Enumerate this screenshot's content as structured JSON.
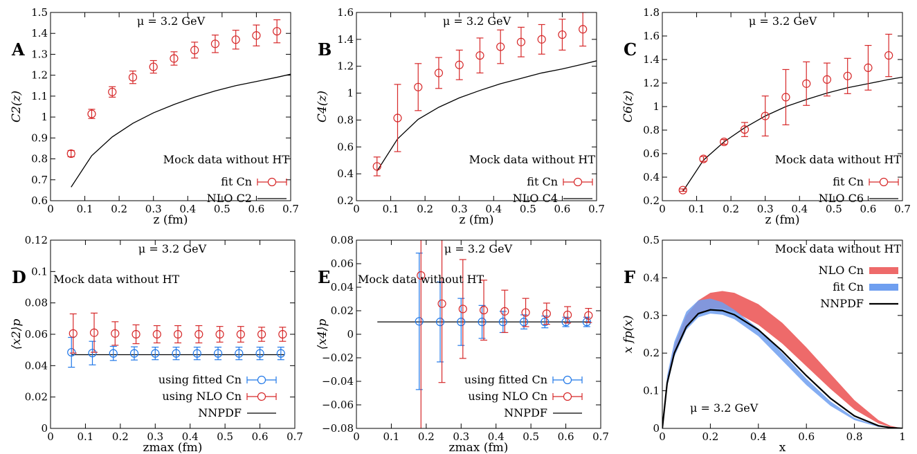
{
  "figure": {
    "colors": {
      "red": "#d62728",
      "blue": "#1f77e8",
      "black": "#000000",
      "red_band": "#ee6a6a",
      "blue_band": "#6f9ff0",
      "overlap_band": "#6a5aa8"
    }
  },
  "chart_data": [
    {
      "id": "A",
      "type": "scatter",
      "panel_label": "A",
      "mu_text": "μ = 3.2 GeV",
      "note": "Mock data without HT",
      "xlabel": "z (fm)",
      "ylabel": "C2(z)",
      "xlim": [
        0,
        0.7
      ],
      "ylim": [
        0.6,
        1.5
      ],
      "xticks": [
        0,
        0.1,
        0.2,
        0.3,
        0.4,
        0.5,
        0.6,
        0.7
      ],
      "xtick_labels": [
        "0",
        "0.1",
        "0.2",
        "0.3",
        "0.4",
        "0.5",
        "0.6",
        "0.7"
      ],
      "yticks": [
        0.6,
        0.7,
        0.8,
        0.9,
        1.0,
        1.1,
        1.2,
        1.3,
        1.4,
        1.5
      ],
      "ytick_labels": [
        "0.6",
        "0.7",
        "0.8",
        "0.9",
        "1",
        "1.1",
        "1.2",
        "1.3",
        "1.4",
        "1.5"
      ],
      "legend": [
        {
          "label": "fit Cn",
          "style": "red-marker"
        },
        {
          "label": "NLO C2",
          "style": "black-line"
        }
      ],
      "series": [
        {
          "name": "fit Cn",
          "kind": "points",
          "color": "#d62728",
          "x": [
            0.06,
            0.12,
            0.18,
            0.24,
            0.3,
            0.36,
            0.42,
            0.48,
            0.54,
            0.6,
            0.66
          ],
          "y": [
            0.825,
            1.015,
            1.12,
            1.19,
            1.24,
            1.28,
            1.32,
            1.35,
            1.37,
            1.39,
            1.41
          ],
          "err": [
            0.015,
            0.022,
            0.025,
            0.03,
            0.03,
            0.032,
            0.038,
            0.042,
            0.045,
            0.05,
            0.055
          ]
        },
        {
          "name": "NLO C2",
          "kind": "line",
          "color": "#000000",
          "x": [
            0.06,
            0.12,
            0.18,
            0.24,
            0.3,
            0.36,
            0.42,
            0.48,
            0.54,
            0.6,
            0.66,
            0.7
          ],
          "y": [
            0.665,
            0.815,
            0.905,
            0.97,
            1.02,
            1.06,
            1.095,
            1.125,
            1.15,
            1.17,
            1.19,
            1.205
          ]
        }
      ]
    },
    {
      "id": "B",
      "type": "scatter",
      "panel_label": "B",
      "mu_text": "μ = 3.2 GeV",
      "note": "Mock data without HT",
      "xlabel": "z (fm)",
      "ylabel": "C4(z)",
      "xlim": [
        0,
        0.7
      ],
      "ylim": [
        0.2,
        1.6
      ],
      "xticks": [
        0,
        0.1,
        0.2,
        0.3,
        0.4,
        0.5,
        0.6,
        0.7
      ],
      "xtick_labels": [
        "0",
        "0.1",
        "0.2",
        "0.3",
        "0.4",
        "0.5",
        "0.6",
        "0.7"
      ],
      "yticks": [
        0.2,
        0.4,
        0.6,
        0.8,
        1.0,
        1.2,
        1.4,
        1.6
      ],
      "ytick_labels": [
        "0.2",
        "0.4",
        "0.6",
        "0.8",
        "1",
        "1.2",
        "1.4",
        "1.6"
      ],
      "legend": [
        {
          "label": "fit Cn",
          "style": "red-marker"
        },
        {
          "label": "NLO C4",
          "style": "black-line"
        }
      ],
      "series": [
        {
          "name": "fit Cn",
          "kind": "points",
          "color": "#d62728",
          "x": [
            0.06,
            0.12,
            0.18,
            0.24,
            0.3,
            0.36,
            0.42,
            0.48,
            0.54,
            0.6,
            0.66
          ],
          "y": [
            0.455,
            0.815,
            1.045,
            1.15,
            1.21,
            1.28,
            1.345,
            1.38,
            1.4,
            1.435,
            1.475
          ],
          "err": [
            0.07,
            0.25,
            0.175,
            0.115,
            0.11,
            0.13,
            0.125,
            0.11,
            0.11,
            0.115,
            0.125
          ]
        },
        {
          "name": "NLO C4",
          "kind": "line",
          "color": "#000000",
          "x": [
            0.06,
            0.12,
            0.18,
            0.24,
            0.3,
            0.36,
            0.42,
            0.48,
            0.54,
            0.6,
            0.66,
            0.7
          ],
          "y": [
            0.42,
            0.66,
            0.805,
            0.895,
            0.965,
            1.02,
            1.07,
            1.11,
            1.15,
            1.18,
            1.215,
            1.24
          ]
        }
      ]
    },
    {
      "id": "C",
      "type": "scatter",
      "panel_label": "C",
      "mu_text": "μ = 3.2 GeV",
      "note": "Mock data without HT",
      "xlabel": "z (fm)",
      "ylabel": "C6(z)",
      "xlim": [
        0,
        0.7
      ],
      "ylim": [
        0.2,
        1.8
      ],
      "xticks": [
        0,
        0.1,
        0.2,
        0.3,
        0.4,
        0.5,
        0.6,
        0.7
      ],
      "xtick_labels": [
        "0",
        "0.1",
        "0.2",
        "0.3",
        "0.4",
        "0.5",
        "0.6",
        "0.7"
      ],
      "yticks": [
        0.2,
        0.4,
        0.6,
        0.8,
        1.0,
        1.2,
        1.4,
        1.6,
        1.8
      ],
      "ytick_labels": [
        "0.2",
        "0.4",
        "0.6",
        "0.8",
        "1",
        "1.2",
        "1.4",
        "1.6",
        "1.8"
      ],
      "legend": [
        {
          "label": "fit Cn",
          "style": "red-marker"
        },
        {
          "label": "NLO C6",
          "style": "black-line"
        }
      ],
      "series": [
        {
          "name": "fit Cn",
          "kind": "points",
          "color": "#d62728",
          "x": [
            0.06,
            0.12,
            0.18,
            0.24,
            0.3,
            0.36,
            0.42,
            0.48,
            0.54,
            0.6,
            0.66
          ],
          "y": [
            0.29,
            0.555,
            0.7,
            0.805,
            0.92,
            1.08,
            1.195,
            1.23,
            1.26,
            1.33,
            1.435
          ],
          "err": [
            0.01,
            0.02,
            0.02,
            0.06,
            0.17,
            0.235,
            0.185,
            0.14,
            0.15,
            0.19,
            0.18
          ]
        },
        {
          "name": "NLO C6",
          "kind": "line",
          "color": "#000000",
          "x": [
            0.06,
            0.12,
            0.18,
            0.24,
            0.3,
            0.36,
            0.42,
            0.48,
            0.54,
            0.6,
            0.66,
            0.7
          ],
          "y": [
            0.28,
            0.545,
            0.7,
            0.82,
            0.92,
            1.0,
            1.06,
            1.115,
            1.16,
            1.195,
            1.23,
            1.25
          ]
        }
      ]
    },
    {
      "id": "D",
      "type": "scatter",
      "panel_label": "D",
      "mu_text": "μ = 3.2 GeV",
      "note": "Mock data without HT",
      "xlabel": "zmax (fm)",
      "ylabel": "⟨x2⟩p",
      "xlim": [
        0,
        0.7
      ],
      "ylim": [
        0,
        0.12
      ],
      "xticks": [
        0,
        0.1,
        0.2,
        0.3,
        0.4,
        0.5,
        0.6,
        0.7
      ],
      "xtick_labels": [
        "0",
        "0.1",
        "0.2",
        "0.3",
        "0.4",
        "0.5",
        "0.6",
        "0.7"
      ],
      "yticks": [
        0,
        0.02,
        0.04,
        0.06,
        0.08,
        0.1,
        0.12
      ],
      "ytick_labels": [
        "0",
        "0.02",
        "0.04",
        "0.06",
        "0.08",
        "0.1",
        "0.12"
      ],
      "legend": [
        {
          "label": "using fitted Cn",
          "style": "blue-marker"
        },
        {
          "label": "using NLO Cn",
          "style": "red-marker"
        },
        {
          "label": "NNPDF",
          "style": "black-line"
        }
      ],
      "series": [
        {
          "name": "using fitted Cn",
          "kind": "points",
          "color": "#1f77e8",
          "x": [
            0.06,
            0.12,
            0.18,
            0.24,
            0.3,
            0.36,
            0.42,
            0.48,
            0.54,
            0.6,
            0.66
          ],
          "y": [
            0.0485,
            0.048,
            0.0478,
            0.0478,
            0.0478,
            0.0478,
            0.0478,
            0.0478,
            0.0478,
            0.0478,
            0.0478
          ],
          "err": [
            0.0095,
            0.0075,
            0.0045,
            0.0042,
            0.004,
            0.004,
            0.004,
            0.004,
            0.004,
            0.004,
            0.004
          ]
        },
        {
          "name": "using NLO Cn",
          "kind": "points",
          "color": "#d62728",
          "x": [
            0.065,
            0.125,
            0.185,
            0.245,
            0.305,
            0.365,
            0.425,
            0.485,
            0.545,
            0.605,
            0.665
          ],
          "y": [
            0.0605,
            0.061,
            0.0605,
            0.06,
            0.06,
            0.06,
            0.06,
            0.06,
            0.06,
            0.06,
            0.06
          ],
          "err": [
            0.0125,
            0.0125,
            0.0075,
            0.006,
            0.0055,
            0.0055,
            0.0055,
            0.005,
            0.005,
            0.0045,
            0.0045
          ]
        },
        {
          "name": "NNPDF",
          "kind": "line",
          "color": "#000000",
          "x": [
            0.06,
            0.67
          ],
          "y": [
            0.047,
            0.047
          ]
        }
      ]
    },
    {
      "id": "E",
      "type": "scatter",
      "panel_label": "E",
      "mu_text": "μ = 3.2 GeV",
      "note": "Mock data without HT",
      "xlabel": "zmax (fm)",
      "ylabel": "⟨x4⟩p",
      "xlim": [
        0,
        0.7
      ],
      "ylim": [
        -0.08,
        0.08
      ],
      "xticks": [
        0,
        0.1,
        0.2,
        0.3,
        0.4,
        0.5,
        0.6,
        0.7
      ],
      "xtick_labels": [
        "0",
        "0.1",
        "0.2",
        "0.3",
        "0.4",
        "0.5",
        "0.6",
        "0.7"
      ],
      "yticks": [
        -0.08,
        -0.06,
        -0.04,
        -0.02,
        0,
        0.02,
        0.04,
        0.06,
        0.08
      ],
      "ytick_labels": [
        "−0.08",
        "−0.06",
        "−0.04",
        "−0.02",
        "0",
        "0.02",
        "0.04",
        "0.06",
        "0.08"
      ],
      "legend": [
        {
          "label": "using fitted Cn",
          "style": "blue-marker"
        },
        {
          "label": "using NLO Cn",
          "style": "red-marker"
        },
        {
          "label": "NNPDF",
          "style": "black-line"
        }
      ],
      "series": [
        {
          "name": "using fitted Cn",
          "kind": "points",
          "color": "#1f77e8",
          "x": [
            0.18,
            0.24,
            0.3,
            0.36,
            0.42,
            0.48,
            0.54,
            0.6,
            0.66
          ],
          "y": [
            0.011,
            0.0105,
            0.0105,
            0.0105,
            0.0105,
            0.0105,
            0.0105,
            0.0105,
            0.0105
          ],
          "err": [
            0.058,
            0.034,
            0.02,
            0.014,
            0.009,
            0.006,
            0.005,
            0.004,
            0.004
          ]
        },
        {
          "name": "using NLO Cn",
          "kind": "points",
          "color": "#d62728",
          "x": [
            0.185,
            0.245,
            0.305,
            0.365,
            0.425,
            0.485,
            0.545,
            0.605,
            0.665
          ],
          "y": [
            0.05,
            0.026,
            0.0215,
            0.0205,
            0.0195,
            0.0185,
            0.0175,
            0.0165,
            0.016
          ],
          "err": [
            0.15,
            0.067,
            0.042,
            0.0255,
            0.018,
            0.012,
            0.009,
            0.007,
            0.006
          ]
        },
        {
          "name": "NNPDF",
          "kind": "line",
          "color": "#000000",
          "x": [
            0.06,
            0.67
          ],
          "y": [
            0.0105,
            0.0105
          ]
        }
      ]
    },
    {
      "id": "F",
      "type": "area",
      "panel_label": "F",
      "mu_text": "μ = 3.2 GeV",
      "note": "Mock data without HT",
      "xlabel": "x",
      "ylabel": "x fp(x)",
      "xlim": [
        0,
        1
      ],
      "ylim": [
        0,
        0.5
      ],
      "xticks": [
        0,
        0.2,
        0.4,
        0.6,
        0.8,
        1
      ],
      "xtick_labels": [
        "0",
        "0.2",
        "0.4",
        "0.6",
        "0.8",
        "1"
      ],
      "yticks": [
        0,
        0.1,
        0.2,
        0.3,
        0.4,
        0.5
      ],
      "ytick_labels": [
        "0",
        "0.1",
        "0.2",
        "0.3",
        "0.4",
        "0.5"
      ],
      "legend": [
        {
          "label": "NLO Cn",
          "style": "red-band"
        },
        {
          "label": "fit Cn",
          "style": "blue-band"
        },
        {
          "label": "NNPDF",
          "style": "black-line"
        }
      ],
      "series": [
        {
          "name": "NLO Cn",
          "kind": "band",
          "color": "#ee6a6a",
          "x": [
            0,
            0.02,
            0.05,
            0.1,
            0.15,
            0.2,
            0.25,
            0.3,
            0.4,
            0.5,
            0.6,
            0.7,
            0.8,
            0.9,
            0.95,
            1.0
          ],
          "lower": [
            0,
            0.12,
            0.2,
            0.27,
            0.305,
            0.318,
            0.318,
            0.31,
            0.275,
            0.225,
            0.165,
            0.105,
            0.05,
            0.013,
            0.004,
            0
          ],
          "upper": [
            0,
            0.13,
            0.22,
            0.3,
            0.34,
            0.36,
            0.365,
            0.36,
            0.33,
            0.28,
            0.215,
            0.145,
            0.075,
            0.022,
            0.007,
            0
          ]
        },
        {
          "name": "fit Cn",
          "kind": "band",
          "color": "#6f9ff0",
          "x": [
            0,
            0.02,
            0.05,
            0.1,
            0.15,
            0.2,
            0.25,
            0.3,
            0.4,
            0.5,
            0.6,
            0.7,
            0.8,
            0.9,
            0.95,
            1.0
          ],
          "lower": [
            0,
            0.11,
            0.19,
            0.262,
            0.295,
            0.305,
            0.302,
            0.29,
            0.245,
            0.18,
            0.115,
            0.06,
            0.022,
            0.004,
            0.001,
            0
          ],
          "upper": [
            0,
            0.14,
            0.23,
            0.31,
            0.34,
            0.345,
            0.335,
            0.315,
            0.265,
            0.2,
            0.132,
            0.072,
            0.028,
            0.006,
            0.002,
            0
          ]
        },
        {
          "name": "NNPDF",
          "kind": "line",
          "color": "#000000",
          "x": [
            0,
            0.02,
            0.05,
            0.1,
            0.15,
            0.2,
            0.25,
            0.3,
            0.4,
            0.5,
            0.6,
            0.7,
            0.8,
            0.9,
            0.95,
            1.0
          ],
          "y": [
            0,
            0.12,
            0.2,
            0.27,
            0.305,
            0.315,
            0.313,
            0.302,
            0.262,
            0.205,
            0.14,
            0.08,
            0.033,
            0.007,
            0.002,
            0
          ]
        }
      ]
    }
  ]
}
